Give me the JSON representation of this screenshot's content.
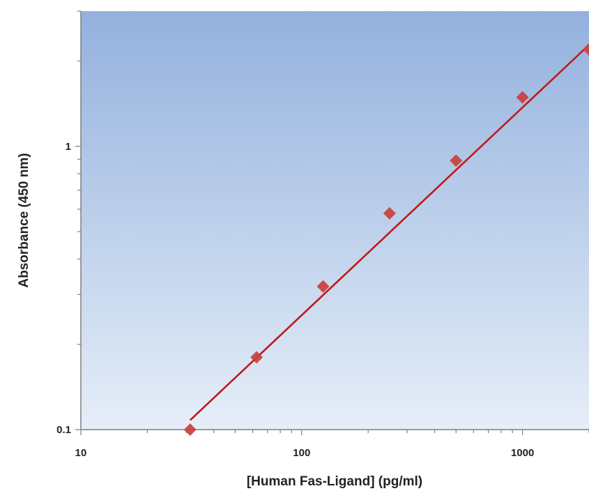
{
  "chart_data": {
    "type": "scatter",
    "title": "",
    "xlabel": "[Human Fas-Ligand] (pg/ml)",
    "ylabel": "Absorbance (450 nm)",
    "x_scale": "log",
    "y_scale": "log",
    "xlim": [
      10,
      2000
    ],
    "ylim": [
      0.1,
      3
    ],
    "x_ticks": [
      10,
      100,
      1000
    ],
    "x_tick_labels": [
      "10",
      "100",
      "1000"
    ],
    "y_ticks": [
      0.1,
      1
    ],
    "y_tick_labels": [
      "0.1",
      "1"
    ],
    "grid": false,
    "legend": "none",
    "series": [
      {
        "type": "scatter",
        "marker": "diamond",
        "color": "#c9403c",
        "x": [
          31.25,
          62.5,
          125,
          250,
          500,
          1000,
          2000
        ],
        "y": [
          0.1,
          0.18,
          0.32,
          0.58,
          0.89,
          1.49,
          2.2
        ]
      },
      {
        "type": "line",
        "color": "#c01818",
        "x": [
          31.25,
          2000
        ],
        "y": [
          0.108,
          2.28
        ]
      }
    ],
    "background_gradient": [
      "#93b1de",
      "#e6eef8"
    ]
  }
}
